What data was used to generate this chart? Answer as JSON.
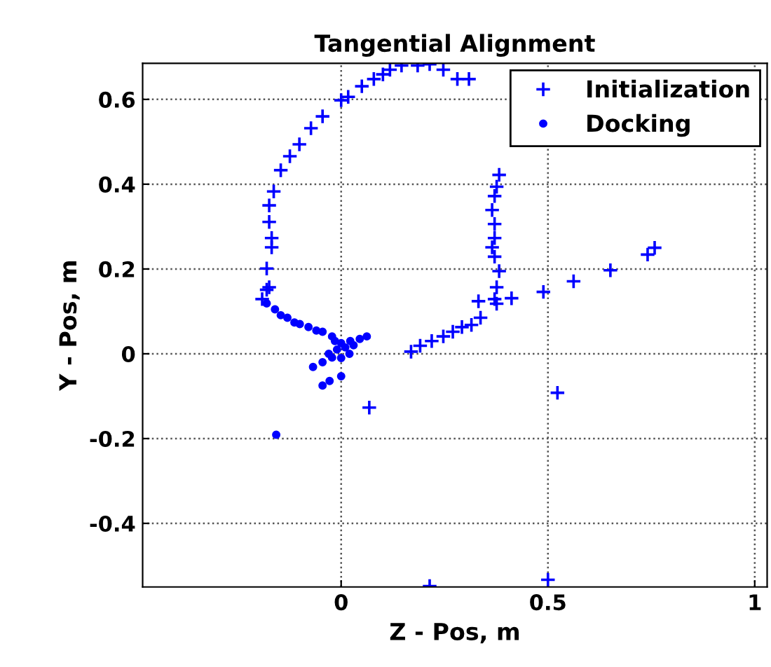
{
  "chart_data": {
    "type": "scatter",
    "title": "Tangential Alignment",
    "xlabel": "Z - Pos, m",
    "ylabel": "Y - Pos, m",
    "xlim": [
      -0.48,
      1.03
    ],
    "ylim": [
      -0.55,
      0.685
    ],
    "xticks": [
      0,
      0.5,
      1
    ],
    "yticks": [
      -0.4,
      -0.2,
      0,
      0.2,
      0.4,
      0.6
    ],
    "grid": true,
    "legend": "top right",
    "series": [
      {
        "name": "Initialization",
        "color": "#0000ff",
        "marker": "cross",
        "x": [
          0.0,
          0.017,
          0.05,
          0.079,
          0.101,
          0.118,
          0.146,
          0.185,
          0.214,
          0.247,
          0.281,
          0.309,
          -0.045,
          -0.073,
          -0.101,
          -0.124,
          -0.146,
          -0.163,
          -0.174,
          -0.174,
          -0.168,
          -0.168,
          -0.18,
          -0.174,
          -0.18,
          -0.191,
          0.382,
          0.376,
          0.371,
          0.365,
          0.371,
          0.371,
          0.365,
          0.371,
          0.382,
          0.376,
          0.371,
          0.376,
          0.332,
          0.337,
          0.315,
          0.292,
          0.27,
          0.247,
          0.219,
          0.191,
          0.169,
          0.412,
          0.489,
          0.562,
          0.651,
          0.741,
          0.758,
          0.068,
          0.523,
          0.5,
          0.214
        ],
        "values": [
          0.598,
          0.606,
          0.631,
          0.648,
          0.659,
          0.67,
          0.68,
          0.68,
          0.683,
          0.67,
          0.648,
          0.648,
          0.56,
          0.532,
          0.494,
          0.466,
          0.433,
          0.383,
          0.35,
          0.311,
          0.273,
          0.251,
          0.201,
          0.157,
          0.151,
          0.129,
          0.422,
          0.394,
          0.372,
          0.339,
          0.306,
          0.273,
          0.251,
          0.229,
          0.195,
          0.157,
          0.129,
          0.118,
          0.124,
          0.085,
          0.068,
          0.063,
          0.052,
          0.041,
          0.03,
          0.019,
          0.005,
          0.131,
          0.146,
          0.171,
          0.197,
          0.234,
          0.25,
          -0.127,
          -0.092,
          -0.533,
          -0.548
        ]
      },
      {
        "name": "Docking",
        "color": "#0000ff",
        "marker": "circle",
        "x": [
          -0.18,
          -0.146,
          -0.113,
          -0.079,
          -0.045,
          -0.022,
          0.0,
          0.022,
          0.045,
          0.062,
          -0.022,
          -0.045,
          -0.068,
          -0.045,
          -0.028,
          0.0,
          -0.157,
          -0.01,
          0.01,
          0.03,
          -0.03,
          0.0,
          0.02,
          -0.015,
          -0.16,
          -0.13,
          -0.1,
          -0.06
        ],
        "values": [
          0.119,
          0.091,
          0.074,
          0.063,
          0.052,
          0.041,
          0.025,
          0.03,
          0.035,
          0.041,
          -0.009,
          -0.02,
          -0.031,
          -0.075,
          -0.064,
          -0.053,
          -0.191,
          0.01,
          0.015,
          0.02,
          0.0,
          -0.01,
          0.0,
          0.03,
          0.105,
          0.085,
          0.07,
          0.055
        ]
      }
    ]
  }
}
